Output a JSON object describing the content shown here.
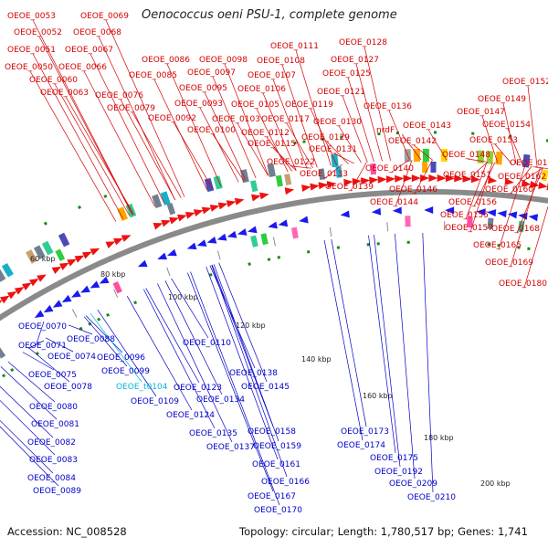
{
  "map": {
    "title": "Oenococcus oeni PSU-1, complete genome",
    "accession": "Accession: NC_008528",
    "summary": "Topology: circular; Length: 1,780,517 bp; Genes: 1,741"
  },
  "colors": {
    "background": "#ffffff",
    "backbone": "#8a8a8a",
    "forward_label": "#d40000",
    "reverse_label": "#0000c8",
    "rna_label": "#00b8d8",
    "forward_feature": "#ee1111",
    "reverse_feature": "#1a1aee",
    "tick": "#1a8a1a"
  },
  "ruler": {
    "ticks": [
      "60 kbp",
      "80 kbp",
      "100 kbp",
      "120 kbp",
      "140 kbp",
      "160 kbp",
      "180 kbp",
      "200 kbp"
    ]
  },
  "forward_labels": [
    "OEOE_0053",
    "OEOE_0069",
    "OEOE_0052",
    "OEOE_0068",
    "OEOE_0051",
    "OEOE_0067",
    "OEOE_0050",
    "OEOE_0066",
    "OEOE_0060",
    "OEOE_0063",
    "OEOE_0086",
    "OEOE_0098",
    "OEOE_0085",
    "OEOE_0097",
    "OEOE_0076",
    "OEOE_0095",
    "OEOE_0079",
    "OEOE_0093",
    "OEOE_0092",
    "OEOE_0100",
    "OEOE_0111",
    "OEOE_0108",
    "OEOE_0107",
    "OEOE_0106",
    "OEOE_0105",
    "OEOE_0103",
    "OEOE_0112",
    "OEOE_0115",
    "OEOE_0117",
    "OEOE_0119",
    "OEOE_0121",
    "OEOE_0122",
    "OEOE_0128",
    "OEOE_0127",
    "OEOE_0125",
    "OEOE_0130",
    "OEOE_0129",
    "OEOE_0131",
    "OEOE_0133",
    "OEOE_0139",
    "OEOE_0136",
    "nrdF",
    "OEOE_0140",
    "OEOE_0144",
    "OEOE_0142",
    "OEOE_0143",
    "OEOE_0146",
    "OEOE_0152",
    "OEOE_0149",
    "OEOE_0147",
    "OEOE_0154",
    "OEOE_0153",
    "OEOE_0148",
    "OEOE_0151",
    "OEOE_0156",
    "OEOE_0155",
    "OEOE_0157",
    "OEOE_0163",
    "OEOE_0162",
    "OEOE_0160",
    "OEOE_0168",
    "OEOE_0165",
    "OEOE_0169",
    "OEOE_0180"
  ],
  "reverse_labels": [
    "OEOE_0070",
    "OEOE_0071",
    "OEOE_0074",
    "OEOE_0088",
    "OEOE_0075",
    "OEOE_0078",
    "OEOE_0080",
    "OEOE_0081",
    "OEOE_0082",
    "OEOE_0083",
    "OEOE_0084",
    "OEOE_0089",
    "OEOE_0096",
    "OEOE_0099",
    "OEOE_0109",
    "OEOE_0110",
    "OEOE_0123",
    "OEOE_0124",
    "OEOE_0134",
    "OEOE_0135",
    "OEOE_0137",
    "OEOE_0138",
    "OEOE_0145",
    "OEOE_0158",
    "OEOE_0159",
    "OEOE_0161",
    "OEOE_0166",
    "OEOE_0167",
    "OEOE_0170",
    "OEOE_0173",
    "OEOE_0174",
    "OEOE_0175",
    "OEOE_0192",
    "OEOE_0209",
    "OEOE_0210"
  ],
  "rna_labels": [
    "OEOE_t0104"
  ]
}
